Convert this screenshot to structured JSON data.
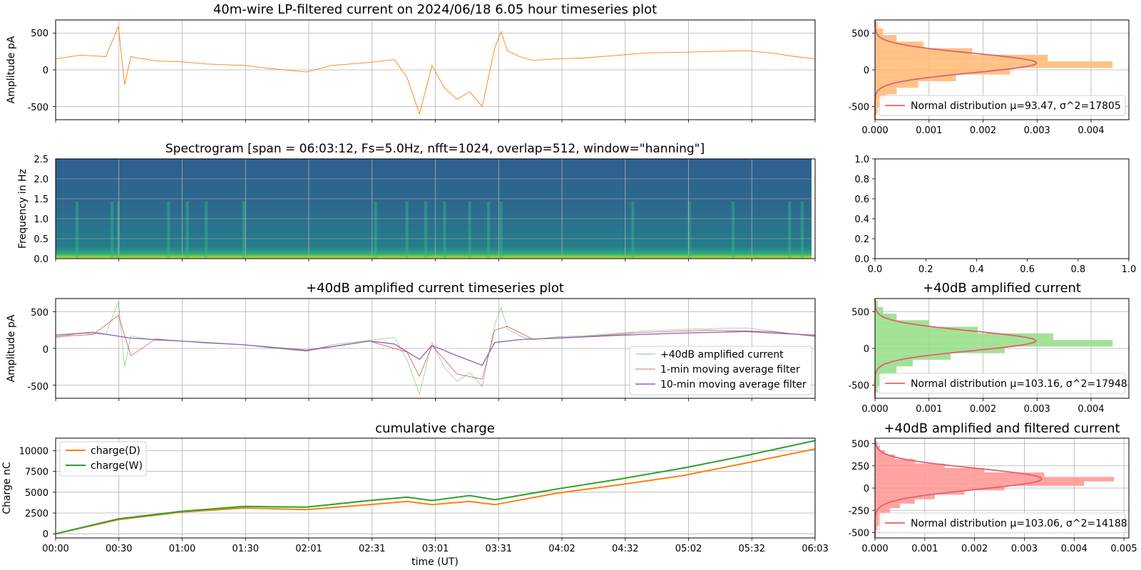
{
  "chart_data": [
    {
      "id": "ts1",
      "type": "line",
      "title": "40m-wire LP-filtered current on 2024/06/18 6.05 hour timeseries plot",
      "ylabel": "Amplitude pA",
      "ylim": [
        -680,
        680
      ],
      "yticks": [
        "500",
        "0",
        "-500"
      ],
      "series": [
        {
          "color": "#ff7f0e",
          "x_hours": [
            0,
            0.2,
            0.4,
            0.5,
            0.55,
            0.6,
            0.8,
            1.0,
            1.2,
            1.5,
            1.7,
            2.0,
            2.2,
            2.5,
            2.7,
            2.8,
            2.9,
            3.0,
            3.1,
            3.2,
            3.3,
            3.4,
            3.5,
            3.55,
            3.6,
            3.7,
            3.8,
            4.0,
            4.2,
            4.5,
            4.7,
            5.0,
            5.2,
            5.5,
            5.7,
            5.9,
            6.05
          ],
          "y": [
            150,
            200,
            180,
            590,
            -200,
            180,
            120,
            110,
            80,
            60,
            20,
            -30,
            60,
            100,
            140,
            -100,
            -600,
            60,
            -250,
            -400,
            -300,
            -500,
            300,
            520,
            260,
            180,
            130,
            150,
            160,
            200,
            230,
            240,
            250,
            260,
            230,
            180,
            150
          ]
        }
      ]
    },
    {
      "id": "spec",
      "type": "heatmap",
      "title": "Spectrogram [span = 06:03:12, Fs=5.0Hz, nfft=1024, overlap=512, window=\"hanning\"]",
      "ylabel": "Frequency in Hz",
      "ylim": [
        0,
        2.5
      ],
      "yticks": [
        "2.5",
        "2.0",
        "1.5",
        "1.0",
        "0.5",
        "0.0"
      ],
      "y_values": [
        2.5,
        2.0,
        1.5,
        1.0,
        0.5,
        0.0
      ]
    },
    {
      "id": "ts2",
      "type": "line",
      "title": "+40dB amplified current timeseries plot",
      "ylabel": "Amplitude pA",
      "ylim": [
        -680,
        680
      ],
      "yticks": [
        "500",
        "0",
        "-500"
      ],
      "legend": [
        "+40dB amplified current",
        "1-min moving average filter",
        "10-min moving average filter"
      ],
      "series": [
        {
          "name": "+40dB amplified current",
          "color": "#2ca02c",
          "x_hours": [
            0,
            0.2,
            0.4,
            0.5,
            0.55,
            0.6,
            0.8,
            1.0,
            1.2,
            1.5,
            1.7,
            2.0,
            2.2,
            2.5,
            2.7,
            2.8,
            2.9,
            3.0,
            3.1,
            3.2,
            3.3,
            3.4,
            3.5,
            3.55,
            3.6,
            3.7,
            3.8,
            4.0,
            4.2,
            4.5,
            4.7,
            5.0,
            5.2,
            5.5,
            5.7,
            5.9,
            6.05
          ],
          "y": [
            150,
            210,
            190,
            640,
            -250,
            170,
            110,
            100,
            70,
            50,
            10,
            -40,
            50,
            110,
            150,
            -150,
            -620,
            80,
            -260,
            -450,
            -330,
            -520,
            320,
            560,
            270,
            170,
            120,
            160,
            170,
            210,
            240,
            260,
            270,
            280,
            240,
            190,
            160
          ]
        },
        {
          "name": "1-min moving average filter",
          "color": "#d62728",
          "x_hours": [
            0,
            0.3,
            0.5,
            0.6,
            0.8,
            1.0,
            1.5,
            2.0,
            2.5,
            2.8,
            2.9,
            3.0,
            3.2,
            3.4,
            3.5,
            3.6,
            3.8,
            4.2,
            4.7,
            5.2,
            5.7,
            6.05
          ],
          "y": [
            160,
            190,
            450,
            -100,
            130,
            100,
            50,
            -20,
            100,
            -50,
            -380,
            40,
            -350,
            -420,
            250,
            300,
            130,
            160,
            220,
            250,
            230,
            170
          ]
        },
        {
          "name": "10-min moving average filter",
          "color": "#9467bd",
          "x_hours": [
            0,
            0.3,
            0.6,
            1.0,
            1.5,
            2.0,
            2.5,
            2.7,
            2.9,
            3.0,
            3.2,
            3.4,
            3.5,
            3.7,
            4.0,
            4.5,
            5.0,
            5.5,
            6.05
          ],
          "y": [
            180,
            220,
            140,
            100,
            50,
            -30,
            100,
            60,
            -150,
            40,
            -100,
            -230,
            80,
            120,
            140,
            180,
            210,
            230,
            180
          ]
        }
      ]
    },
    {
      "id": "cum",
      "type": "line",
      "title": "cumulative charge",
      "ylabel": "Charge nC",
      "xlabel": "time (UT)",
      "ylim": [
        -500,
        11500
      ],
      "yticks": [
        "10000",
        "7500",
        "5000",
        "2500",
        "0"
      ],
      "y_values": [
        10000,
        7500,
        5000,
        2500,
        0
      ],
      "xticks": [
        "00:00",
        "00:30",
        "01:00",
        "01:30",
        "02:01",
        "02:31",
        "03:01",
        "03:31",
        "04:02",
        "04:32",
        "05:02",
        "05:32",
        "06:03"
      ],
      "legend": [
        "charge(D)",
        "charge(W)"
      ],
      "series": [
        {
          "name": "charge(D)",
          "color": "#ff7f0e",
          "x_hours": [
            0,
            0.5,
            1.0,
            1.5,
            2.0,
            2.5,
            2.8,
            3.0,
            3.3,
            3.5,
            4.0,
            4.5,
            5.0,
            5.5,
            6.05
          ],
          "y": [
            0,
            1700,
            2600,
            3100,
            2900,
            3500,
            3900,
            3500,
            3900,
            3500,
            4900,
            5900,
            7000,
            8500,
            10200
          ]
        },
        {
          "name": "charge(W)",
          "color": "#2ca02c",
          "x_hours": [
            0,
            0.5,
            1.0,
            1.5,
            2.0,
            2.5,
            2.8,
            3.0,
            3.3,
            3.5,
            4.0,
            4.5,
            5.0,
            5.5,
            6.05
          ],
          "y": [
            0,
            1800,
            2700,
            3300,
            3200,
            4000,
            4400,
            4000,
            4600,
            4100,
            5400,
            6600,
            7900,
            9400,
            11200
          ]
        }
      ]
    },
    {
      "id": "h1",
      "type": "bar",
      "legend": [
        "Normal distribution μ=93.47, σ^2=17805"
      ],
      "ylim": [
        -680,
        680
      ],
      "xlim": [
        0,
        0.0047
      ],
      "yticks": [
        "500",
        "0",
        "-500"
      ],
      "xticks": [
        "0.000",
        "0.001",
        "0.002",
        "0.003",
        "0.004"
      ],
      "x_values": [
        0,
        0.001,
        0.002,
        0.003,
        0.004
      ],
      "bar_color": "#ffbb78",
      "bins_center": [
        -560,
        -470,
        -380,
        -290,
        -200,
        -110,
        -20,
        70,
        160,
        250,
        340,
        430,
        520,
        610
      ],
      "bins_density": [
        5e-05,
        0.0001,
        0.0002,
        0.0004,
        0.0008,
        0.0015,
        0.0025,
        0.0044,
        0.0032,
        0.0018,
        0.0009,
        0.0004,
        0.00015,
        5e-05
      ],
      "normal": {
        "mu": 93.47,
        "var": 17805
      }
    },
    {
      "id": "h_empty",
      "type": "scatter",
      "xlim": [
        0,
        1
      ],
      "ylim": [
        0,
        1
      ],
      "xticks": [
        "0.0",
        "0.2",
        "0.4",
        "0.6",
        "0.8",
        "1.0"
      ],
      "yticks": [
        "1.0",
        "0.8",
        "0.6",
        "0.4",
        "0.2",
        "0.0"
      ],
      "x_values": [
        0,
        0.2,
        0.4,
        0.6,
        0.8,
        1.0
      ],
      "y_values": [
        1.0,
        0.8,
        0.6,
        0.4,
        0.2,
        0.0
      ]
    },
    {
      "id": "h2",
      "type": "bar",
      "title": "+40dB amplified current",
      "legend": [
        "Normal distribution μ=103.16, σ^2=17948"
      ],
      "ylim": [
        -680,
        680
      ],
      "xlim": [
        0,
        0.0047
      ],
      "yticks": [
        "500",
        "0",
        "-500"
      ],
      "xticks": [
        "0.000",
        "0.001",
        "0.002",
        "0.003",
        "0.004"
      ],
      "x_values": [
        0,
        0.001,
        0.002,
        0.003,
        0.004
      ],
      "bar_color": "#98df8a",
      "bins_center": [
        -560,
        -470,
        -380,
        -290,
        -200,
        -110,
        -20,
        70,
        160,
        250,
        340,
        430,
        520,
        610
      ],
      "bins_density": [
        5e-05,
        0.0001,
        0.0002,
        0.0004,
        0.0007,
        0.0014,
        0.0024,
        0.0044,
        0.0033,
        0.0019,
        0.001,
        0.0004,
        0.00015,
        5e-05
      ],
      "normal": {
        "mu": 103.16,
        "var": 17948
      }
    },
    {
      "id": "h3",
      "type": "bar",
      "title": "+40dB amplified and filtered current",
      "legend": [
        "Normal distribution μ=103.06, σ^2=14188"
      ],
      "ylim": [
        -560,
        560
      ],
      "xlim": [
        0,
        0.0051
      ],
      "yticks": [
        "500",
        "250",
        "0",
        "-250",
        "-500"
      ],
      "xticks": [
        "0.000",
        "0.001",
        "0.002",
        "0.003",
        "0.004",
        "0.005"
      ],
      "x_values": [
        0,
        0.001,
        0.002,
        0.003,
        0.004,
        0.005
      ],
      "bar_color": "#ff9896",
      "bins_center": [
        -450,
        -400,
        -350,
        -300,
        -250,
        -200,
        -150,
        -100,
        -50,
        0,
        50,
        100,
        150,
        200,
        250,
        300,
        350,
        400,
        450,
        500
      ],
      "bins_density": [
        5e-05,
        0.0001,
        0.00015,
        0.0002,
        0.0003,
        0.0005,
        0.0008,
        0.0012,
        0.0018,
        0.0026,
        0.0042,
        0.0048,
        0.0034,
        0.0022,
        0.0014,
        0.0008,
        0.0004,
        0.0002,
        0.0001,
        5e-05
      ],
      "normal": {
        "mu": 103.06,
        "var": 14188
      }
    }
  ]
}
